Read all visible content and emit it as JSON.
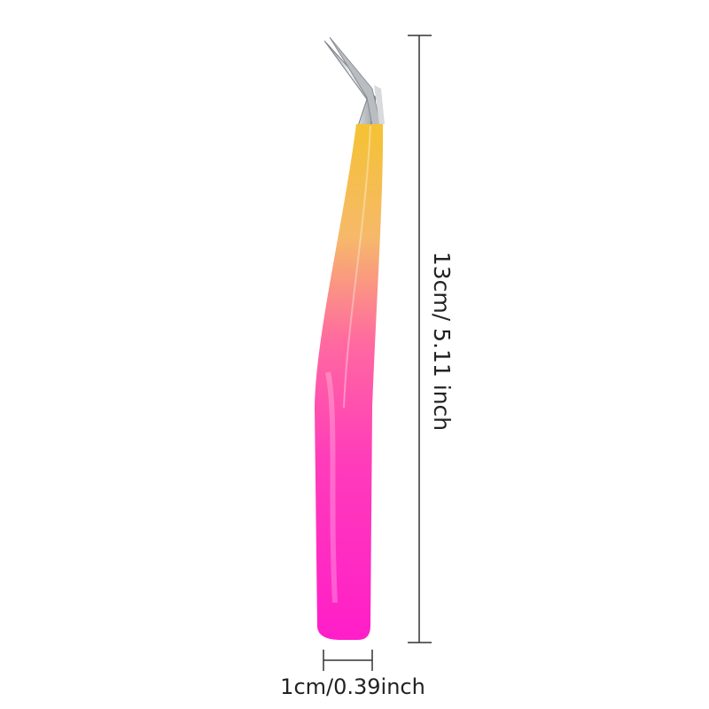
{
  "product": {
    "name_icon": "tweezers-icon",
    "colors": {
      "top": "#f4c233",
      "middle": "#ff5aa5",
      "bottom": "#ff22c8",
      "tip": "#c9ccd0"
    }
  },
  "dimensions": {
    "length_label": "13cm/ 5.11 inch",
    "width_label": "1cm/0.39inch"
  }
}
